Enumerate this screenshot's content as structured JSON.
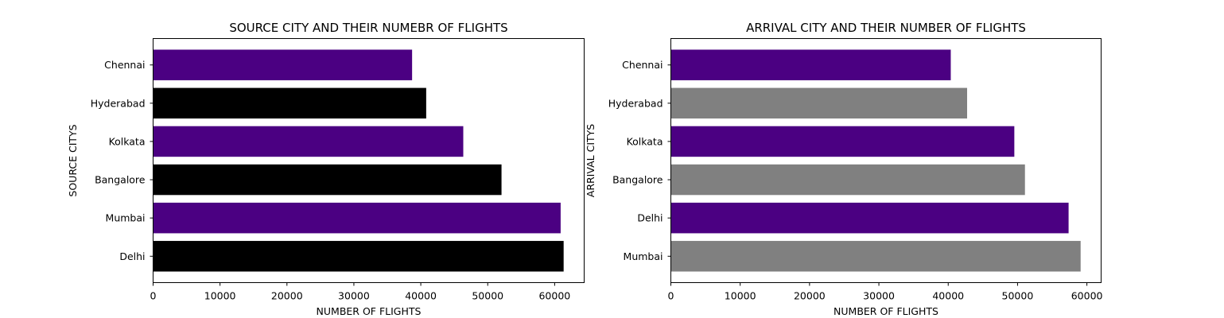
{
  "chart_data": [
    {
      "type": "bar",
      "orientation": "horizontal",
      "title": "SOURCE CITY AND THEIR NUMEBR OF FLIGHTS",
      "xlabel": "NUMBER OF FLIGHTS",
      "ylabel": "SOURCE CITYS",
      "categories": [
        "Delhi",
        "Mumbai",
        "Bangalore",
        "Kolkata",
        "Hyderabad",
        "Chennai"
      ],
      "values": [
        61343,
        60896,
        52061,
        46347,
        40806,
        38700
      ],
      "colors": [
        "#000000",
        "#4b0082",
        "#000000",
        "#4b0082",
        "#000000",
        "#4b0082"
      ],
      "xlim": [
        0,
        64411
      ],
      "xticks": [
        0,
        10000,
        20000,
        30000,
        40000,
        50000,
        60000
      ],
      "grid": false
    },
    {
      "type": "bar",
      "orientation": "horizontal",
      "title": "ARRIVAL CITY AND THEIR NUMBER OF FLIGHTS",
      "xlabel": "NUMBER OF FLIGHTS",
      "ylabel": "ARRIVAL CITYS",
      "categories": [
        "Mumbai",
        "Delhi",
        "Bangalore",
        "Kolkata",
        "Hyderabad",
        "Chennai"
      ],
      "values": [
        59097,
        57360,
        51068,
        49534,
        42726,
        40368
      ],
      "colors": [
        "#808080",
        "#4b0082",
        "#808080",
        "#4b0082",
        "#808080",
        "#4b0082"
      ],
      "xlim": [
        0,
        62052
      ],
      "xticks": [
        0,
        10000,
        20000,
        30000,
        40000,
        50000,
        60000
      ],
      "grid": false
    }
  ]
}
